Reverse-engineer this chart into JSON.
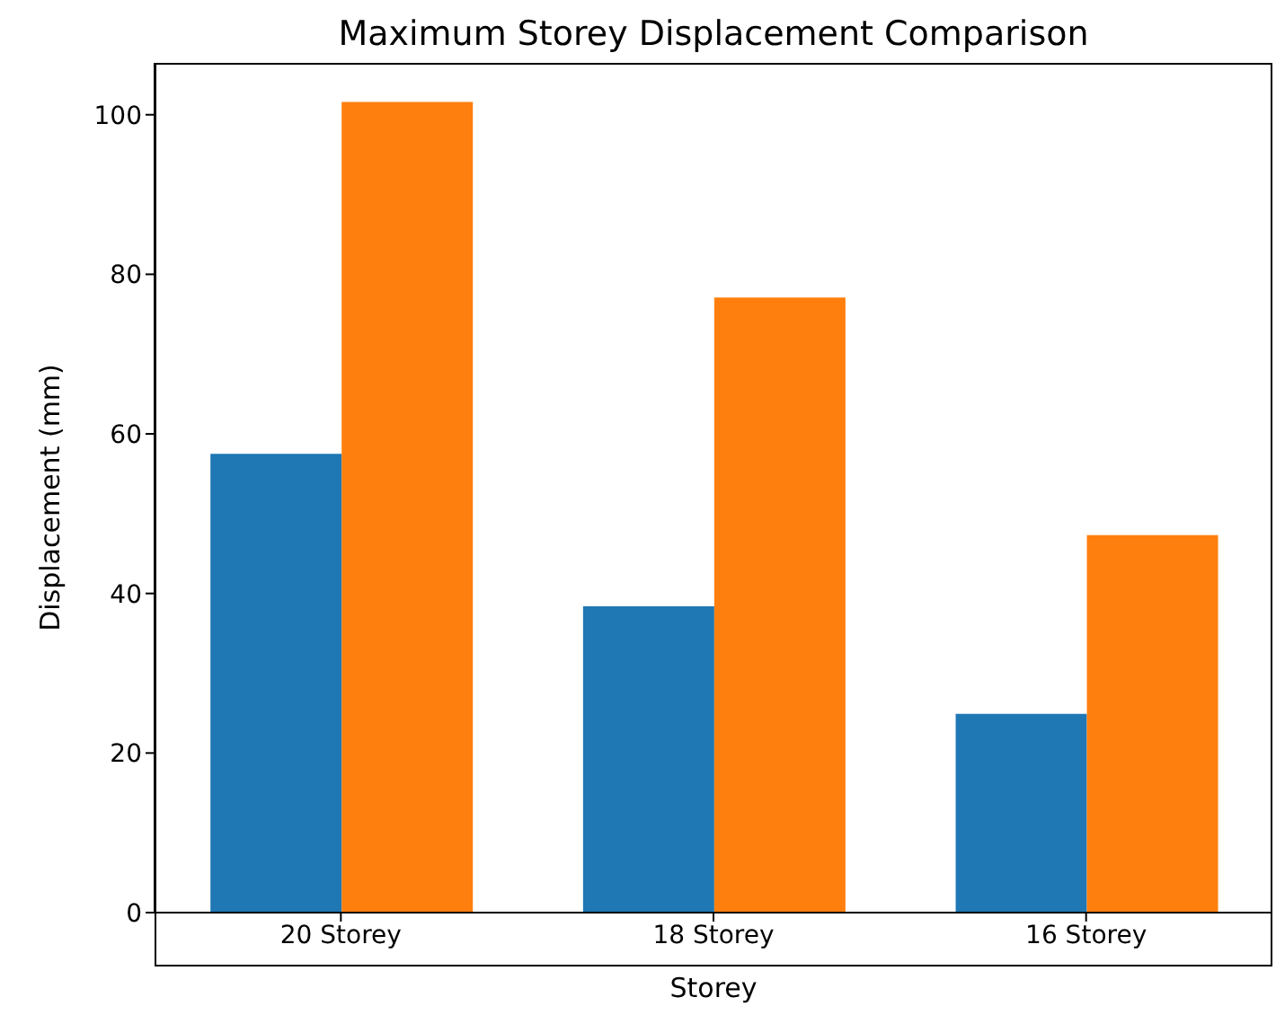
{
  "chart_data": {
    "type": "bar",
    "title": "Maximum Storey Displacement Comparison",
    "xlabel": "Storey",
    "ylabel": "Displacement (mm)",
    "categories": [
      "20 Storey",
      "18 Storey",
      "16 Storey"
    ],
    "series": [
      {
        "color": "#1f77b4",
        "values": [
          57.5,
          38.4,
          24.9
        ]
      },
      {
        "color": "#ff7f0e",
        "values": [
          101.6,
          77.1,
          47.3
        ]
      }
    ],
    "ylim": [
      0,
      106.5
    ],
    "yticks": [
      0,
      20,
      40,
      60,
      80,
      100
    ],
    "grid": false,
    "legend": false
  }
}
